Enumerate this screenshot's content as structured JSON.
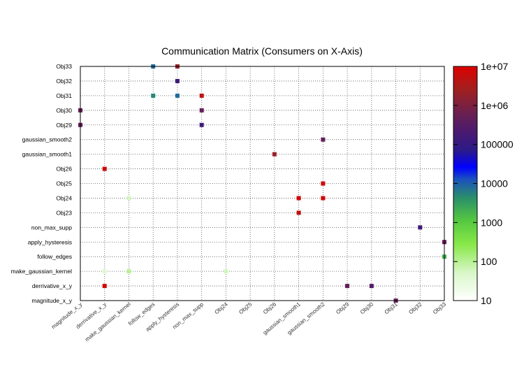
{
  "chart_data": {
    "type": "heatmap",
    "title": "Communication Matrix (Consumers on X-Axis)",
    "x_categories": [
      "magnitude_x_y",
      "derrivative_x_y",
      "make_gaussian_kernel",
      "follow_edges",
      "apply_hysteresis",
      "non_max_supp",
      "Obj24",
      "Obj25",
      "Obj26",
      "gaussian_smooth1",
      "gaussian_smooth2",
      "Obj29",
      "Obj30",
      "Obj31",
      "Obj32",
      "Obj33"
    ],
    "y_categories": [
      "magnitude_x_y",
      "derrivative_x_y",
      "make_gaussian_kernel",
      "follow_edges",
      "apply_hysteresis",
      "non_max_supp",
      "Obj23",
      "Obj24",
      "Obj25",
      "Obj26",
      "gaussian_smooth1",
      "gaussian_smooth2",
      "Obj29",
      "Obj30",
      "Obj31",
      "Obj32",
      "Obj33"
    ],
    "colorbar": {
      "scale": "log",
      "range": [
        10,
        10000000
      ],
      "tick_labels": [
        "10",
        "100",
        "1000",
        "10000",
        "100000",
        "1e+06",
        "1e+07"
      ]
    },
    "grid": true,
    "points": [
      {
        "x": "apply_hysteresis",
        "y": "Obj33",
        "value": 2000000
      },
      {
        "x": "follow_edges",
        "y": "Obj33",
        "value": 8000
      },
      {
        "x": "apply_hysteresis",
        "y": "Obj32",
        "value": 150000
      },
      {
        "x": "follow_edges",
        "y": "Obj31",
        "value": 5000
      },
      {
        "x": "apply_hysteresis",
        "y": "Obj31",
        "value": 8000
      },
      {
        "x": "non_max_supp",
        "y": "Obj31",
        "value": 5000000
      },
      {
        "x": "magnitude_x_y",
        "y": "Obj30",
        "value": 500000
      },
      {
        "x": "non_max_supp",
        "y": "Obj30",
        "value": 500000
      },
      {
        "x": "magnitude_x_y",
        "y": "Obj29",
        "value": 500000
      },
      {
        "x": "non_max_supp",
        "y": "Obj29",
        "value": 150000
      },
      {
        "x": "gaussian_smooth2",
        "y": "gaussian_smooth2",
        "value": 500000
      },
      {
        "x": "Obj26",
        "y": "gaussian_smooth1",
        "value": 2000000
      },
      {
        "x": "derrivative_x_y",
        "y": "Obj26",
        "value": 6000000
      },
      {
        "x": "gaussian_smooth2",
        "y": "Obj25",
        "value": 7000000
      },
      {
        "x": "make_gaussian_kernel",
        "y": "Obj24",
        "value": 60
      },
      {
        "x": "gaussian_smooth1",
        "y": "Obj24",
        "value": 8000000
      },
      {
        "x": "gaussian_smooth2",
        "y": "Obj24",
        "value": 8000000
      },
      {
        "x": "gaussian_smooth1",
        "y": "Obj23",
        "value": 5000000
      },
      {
        "x": "Obj32",
        "y": "non_max_supp",
        "value": 150000
      },
      {
        "x": "Obj33",
        "y": "apply_hysteresis",
        "value": 500000
      },
      {
        "x": "Obj33",
        "y": "follow_edges",
        "value": 2000
      },
      {
        "x": "derrivative_x_y",
        "y": "make_gaussian_kernel",
        "value": 40
      },
      {
        "x": "make_gaussian_kernel",
        "y": "make_gaussian_kernel",
        "value": 100
      },
      {
        "x": "Obj24",
        "y": "make_gaussian_kernel",
        "value": 60
      },
      {
        "x": "derrivative_x_y",
        "y": "derrivative_x_y",
        "value": 7000000
      },
      {
        "x": "Obj29",
        "y": "derrivative_x_y",
        "value": 500000
      },
      {
        "x": "Obj30",
        "y": "derrivative_x_y",
        "value": 300000
      },
      {
        "x": "Obj31",
        "y": "magnitude_x_y",
        "value": 500000
      }
    ]
  }
}
